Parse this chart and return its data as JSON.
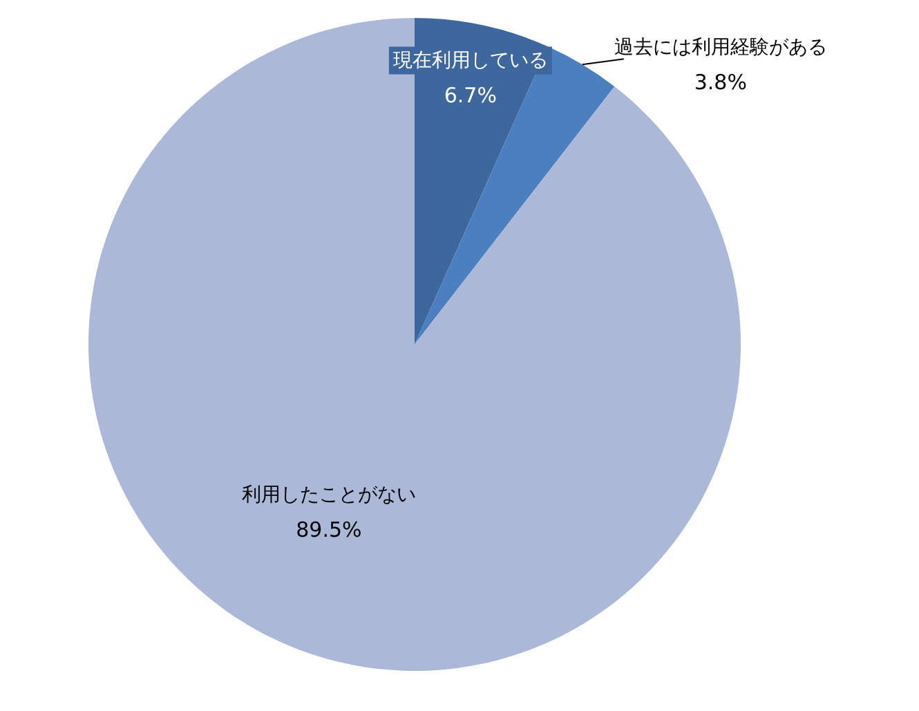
{
  "chart_data": {
    "type": "pie",
    "categories": [
      "現在利用している",
      "過去には利用経験がある",
      "利用したことがない"
    ],
    "values": [
      6.7,
      3.8,
      89.5
    ],
    "value_labels": [
      "6.7%",
      "3.8%",
      "89.5%"
    ],
    "colors": [
      "#3e679e",
      "#4b7fc0",
      "#abb8d7"
    ]
  }
}
